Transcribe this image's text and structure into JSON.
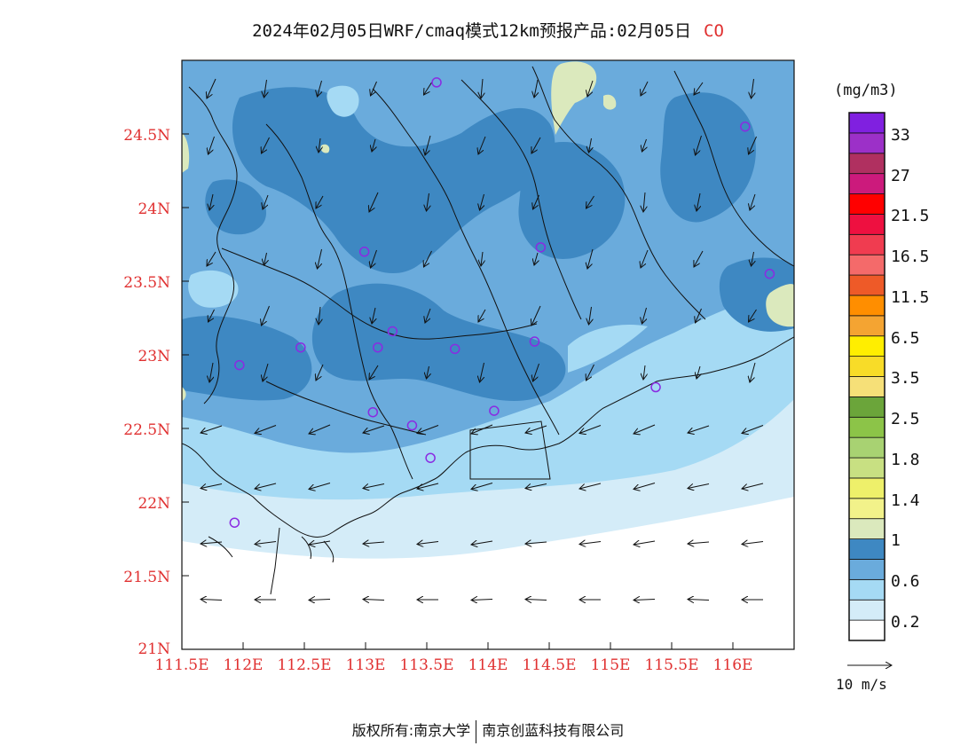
{
  "title": {
    "text": "2024年02月05日WRF/cmaq模式12km预报产品:02月05日",
    "species": "CO"
  },
  "map": {
    "lat_labels": [
      "24.5N",
      "24N",
      "23.5N",
      "23N",
      "22.5N",
      "22N",
      "21.5N",
      "21N"
    ],
    "lon_labels": [
      "111.5E",
      "112E",
      "112.5E",
      "113E",
      "113.5E",
      "114E",
      "114.5E",
      "115E",
      "115.5E",
      "116E"
    ],
    "lat_range": [
      21,
      25
    ],
    "lon_range": [
      111.5,
      116.5
    ],
    "stations": [
      [
        113.58,
        24.85
      ],
      [
        116.1,
        24.55
      ],
      [
        112.99,
        23.7
      ],
      [
        114.43,
        23.73
      ],
      [
        116.3,
        23.55
      ],
      [
        113.22,
        23.16
      ],
      [
        113.1,
        23.05
      ],
      [
        113.73,
        23.04
      ],
      [
        114.38,
        23.09
      ],
      [
        112.47,
        23.05
      ],
      [
        111.97,
        22.93
      ],
      [
        115.37,
        22.78
      ],
      [
        113.06,
        22.61
      ],
      [
        114.05,
        22.62
      ],
      [
        113.38,
        22.52
      ],
      [
        113.53,
        22.3
      ],
      [
        111.93,
        21.86
      ]
    ],
    "wind_direction": "northerly to northeasterly"
  },
  "colorbar": {
    "unit": "(mg/m3)",
    "labels": [
      "33",
      "27",
      "21.5",
      "16.5",
      "11.5",
      "6.5",
      "3.5",
      "2.5",
      "1.8",
      "1.4",
      "1",
      "0.6",
      "0.2"
    ],
    "colors": [
      "#ffffff",
      "#d4ecf8",
      "#a5daf4",
      "#6aabdc",
      "#3e88c2",
      "#dbe9bd",
      "#f2f28a",
      "#eef06a",
      "#c8e082",
      "#a8d272",
      "#8cc448",
      "#6ba53a",
      "#f6e078",
      "#f8dc28",
      "#ffee00",
      "#f4a432",
      "#ff8e00",
      "#ee5a28",
      "#f46a6a",
      "#f03c50",
      "#ee1040",
      "#ff0000",
      "#cc1a7c",
      "#b03060",
      "#9c30c8",
      "#8020e0"
    ]
  },
  "wind_reference": {
    "label": "10 m/s"
  },
  "footer": {
    "copyright": "版权所有:南京大学",
    "company": "南京创蓝科技有限公司"
  }
}
